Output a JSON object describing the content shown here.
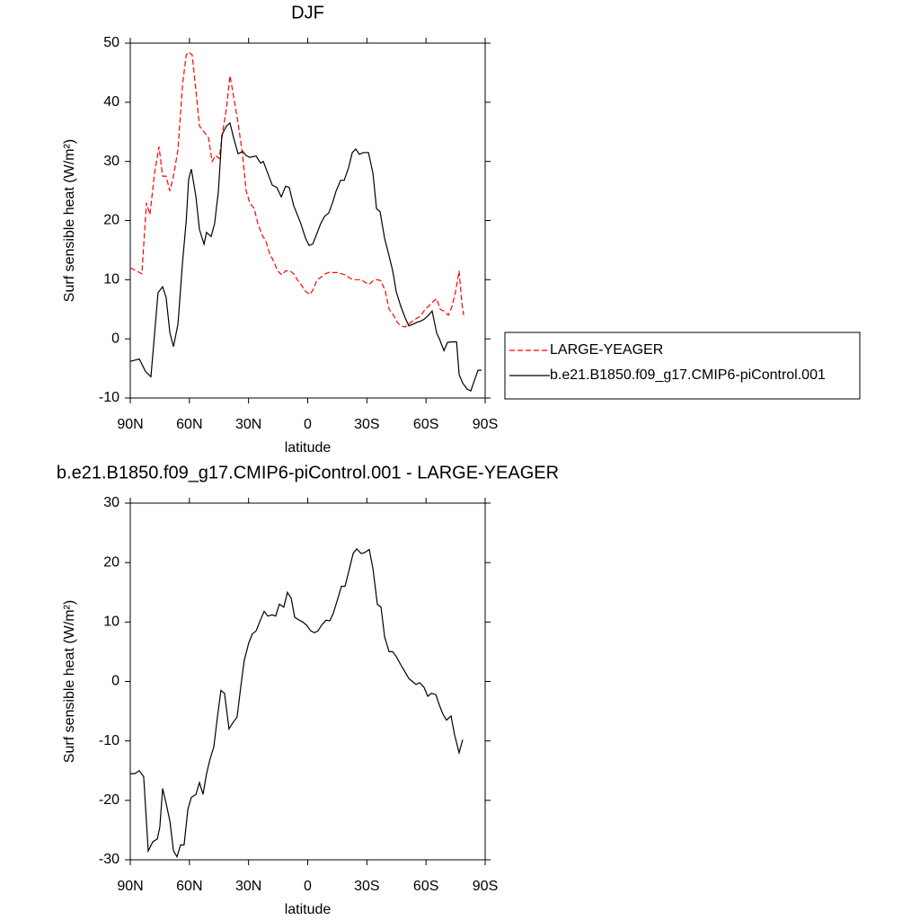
{
  "chart_data": [
    {
      "type": "line",
      "title": "DJF",
      "x_label": "latitude",
      "y_label": "Surf sensible heat (W/m²)",
      "xlim": [
        90,
        -90
      ],
      "ylim": [
        -10,
        50
      ],
      "xticks": [
        {
          "value": 90,
          "label": "90N"
        },
        {
          "value": 60,
          "label": "60N"
        },
        {
          "value": 30,
          "label": "30N"
        },
        0,
        {
          "value": -30,
          "label": "30S"
        },
        {
          "value": -60,
          "label": "60S"
        },
        {
          "value": -90,
          "label": "90S"
        }
      ],
      "yticks": [
        -10,
        0,
        10,
        20,
        30,
        40,
        50
      ],
      "legend": "outside-right",
      "series": [
        {
          "name": "LARGE-YEAGER",
          "color": "#ff0000",
          "dash": "dashed",
          "x": [
            90,
            86.8,
            84.1,
            81.8,
            80,
            77.7,
            75.4,
            73.6,
            71.8,
            69.9,
            68.1,
            65.8,
            63.5,
            61.6,
            60.4,
            58.6,
            56.7,
            54.9,
            52.6,
            50.3,
            48.5,
            46.7,
            44.9,
            43.1,
            41.2,
            39.4,
            37.6,
            35.3,
            33,
            31.2,
            29.4,
            27.1,
            25.3,
            23,
            21.2,
            19.4,
            17.1,
            15.3,
            13,
            11.2,
            8.9,
            7.1,
            5.3,
            3,
            1.1,
            -1.2,
            -3,
            -4.8,
            -7.1,
            -8.9,
            -11.2,
            -13,
            -15.3,
            -17.1,
            -19.4,
            -21.2,
            -23,
            -25.3,
            -27.1,
            -28.9,
            -31.2,
            -33.1,
            -35.3,
            -37.2,
            -39.4,
            -41.3,
            -43.5,
            -45.4,
            -47.2,
            -49.5,
            -51.3,
            -53.1,
            -55.4,
            -57.2,
            -59.5,
            -61.3,
            -63.1,
            -65.4,
            -67.2,
            -69.1,
            -71.3,
            -73.2,
            -75,
            -76.8,
            -78.2,
            -79.1
          ],
          "values": [
            12,
            11.5,
            11,
            23,
            21,
            28,
            32.5,
            27.5,
            27.5,
            25,
            27.5,
            32,
            43,
            48,
            48.5,
            48,
            42,
            36,
            35,
            34,
            30,
            31,
            30.5,
            35,
            39,
            44.5,
            41,
            36.5,
            31,
            25,
            23,
            22,
            19.5,
            17.5,
            16.5,
            14.5,
            13,
            11.5,
            10.8,
            11.5,
            11.5,
            11,
            10,
            9,
            8,
            7.5,
            8.5,
            10,
            10.5,
            11,
            11.3,
            11.2,
            11.2,
            11,
            10.8,
            10.3,
            10,
            10,
            10,
            9.6,
            9.2,
            9.8,
            10,
            9.8,
            8,
            5,
            4,
            2.8,
            2.2,
            2,
            2.5,
            3,
            3.5,
            3.8,
            5,
            5.5,
            6.2,
            6.8,
            5,
            4.7,
            4,
            5.5,
            8,
            11.5,
            6,
            4
          ]
        },
        {
          "name": "b.e21.B1850.f09_g17.CMIP6-piControl.001",
          "color": "#000000",
          "dash": "solid",
          "x": [
            90,
            85.4,
            82.3,
            79.5,
            75.9,
            73.6,
            71.8,
            69.9,
            68.1,
            65.8,
            63.5,
            61.6,
            60.4,
            59,
            56.7,
            54.9,
            52.6,
            51.3,
            49,
            47.2,
            45.3,
            43.5,
            41.2,
            39.4,
            37.6,
            35.3,
            33,
            31.2,
            29.4,
            26.2,
            23.9,
            22.5,
            20.3,
            18,
            15.7,
            13.4,
            11.2,
            9.4,
            7.1,
            5.3,
            3.5,
            1.1,
            -0.7,
            -2.5,
            -4.3,
            -6.6,
            -8.5,
            -10.7,
            -12.6,
            -14.4,
            -16.7,
            -18.5,
            -20.8,
            -22.6,
            -24.4,
            -26.2,
            -28.1,
            -30.8,
            -33.1,
            -34.9,
            -36.7,
            -39,
            -41.3,
            -43.1,
            -44.9,
            -47.2,
            -49.5,
            -51.3,
            -53.6,
            -55.4,
            -57.2,
            -59,
            -61.3,
            -63.1,
            -65.4,
            -66.8,
            -69.1,
            -70.9,
            -73.2,
            -75.5,
            -76.8,
            -78.6,
            -80.9,
            -82.7,
            -84.6,
            -86.4,
            -88.2
          ],
          "values": [
            -3.8,
            -3.4,
            -5.5,
            -6.4,
            7.8,
            8.8,
            7,
            1,
            -1.3,
            2.5,
            13,
            20,
            27,
            28.7,
            24,
            18.5,
            16,
            18,
            17.3,
            19.5,
            25,
            34.5,
            36,
            36.5,
            34,
            31.3,
            31.7,
            31,
            30.7,
            30.9,
            29.7,
            30,
            28,
            26,
            25.6,
            24,
            25.8,
            25.6,
            22.5,
            21,
            19.5,
            17,
            15.8,
            16,
            17.5,
            19.5,
            20.7,
            21.3,
            23,
            25,
            26.8,
            26.8,
            29,
            31.5,
            32.1,
            31.2,
            31.5,
            31.5,
            28,
            22,
            21.5,
            17,
            14,
            11.5,
            8,
            5.5,
            3.5,
            2.2,
            2.5,
            2.8,
            3,
            3.3,
            4,
            4.7,
            1,
            0,
            -2,
            -0.6,
            -0.5,
            -0.5,
            -6,
            -7.5,
            -8.5,
            -8.8,
            -7,
            -5.3,
            -5.3
          ]
        }
      ]
    },
    {
      "type": "line",
      "title": "b.e21.B1850.f09_g17.CMIP6-piControl.001 - LARGE-YEAGER",
      "x_label": "latitude",
      "y_label": "Surf sensible heat (W/m²)",
      "xlim": [
        90,
        -90
      ],
      "ylim": [
        -30,
        30
      ],
      "xticks": [
        {
          "value": 90,
          "label": "90N"
        },
        {
          "value": 60,
          "label": "60N"
        },
        {
          "value": 30,
          "label": "30N"
        },
        0,
        {
          "value": -30,
          "label": "30S"
        },
        {
          "value": -60,
          "label": "60S"
        },
        {
          "value": -90,
          "label": "90S"
        }
      ],
      "yticks": [
        -30,
        -20,
        -10,
        0,
        10,
        20,
        30
      ],
      "color": "#000000",
      "x": [
        90,
        87.7,
        85.4,
        83.2,
        80.9,
        78.6,
        76.3,
        75,
        73.6,
        71.8,
        69.9,
        68.1,
        66.3,
        64.5,
        62.7,
        60.8,
        59,
        56.7,
        54.9,
        53.1,
        51.3,
        49.5,
        47.6,
        45.8,
        44,
        42.2,
        39.9,
        38.1,
        35.8,
        34,
        32.2,
        29.9,
        28.1,
        26.2,
        24.4,
        22.1,
        20.3,
        18,
        16.2,
        14.4,
        12.1,
        10.3,
        8.4,
        6.6,
        4.3,
        2.5,
        0.7,
        -1.6,
        -3.4,
        -5.2,
        -7.1,
        -9.3,
        -11.2,
        -13,
        -15.3,
        -17.1,
        -18.9,
        -21.2,
        -23,
        -24.9,
        -27.1,
        -29,
        -31.2,
        -33.1,
        -35.3,
        -37.2,
        -39,
        -41.3,
        -43.1,
        -44.9,
        -47.2,
        -49,
        -51.3,
        -53.1,
        -54.9,
        -56.8,
        -59,
        -60.9,
        -62.7,
        -65,
        -66.8,
        -68.6,
        -70.4,
        -72.7,
        -74.5,
        -76.8,
        -78.6
      ],
      "values": [
        -15.5,
        -15.5,
        -15,
        -16,
        -28.5,
        -27,
        -26.5,
        -24.5,
        -18,
        -20.5,
        -23.5,
        -28.5,
        -29.5,
        -27.5,
        -27.5,
        -21.5,
        -19.5,
        -19,
        -17,
        -19,
        -15.5,
        -13,
        -11,
        -6,
        -1.5,
        -2,
        -8,
        -7,
        -6,
        -1,
        3.5,
        6.5,
        8,
        8.5,
        10,
        11.8,
        11,
        11.2,
        11,
        13,
        12.5,
        15,
        14,
        10.8,
        10.3,
        10,
        9.5,
        8.5,
        8.2,
        8.5,
        9.5,
        10.3,
        10.2,
        11.5,
        14,
        16,
        16,
        19,
        21.5,
        22.3,
        21.5,
        21.7,
        22.2,
        19,
        13,
        12.5,
        7.5,
        5,
        5,
        4.2,
        2.8,
        1.8,
        0.5,
        0,
        -0.5,
        -0.2,
        -1,
        -2.5,
        -2,
        -2.2,
        -4,
        -5.5,
        -6.5,
        -5.8,
        -9,
        -12,
        -9.8
      ]
    }
  ]
}
